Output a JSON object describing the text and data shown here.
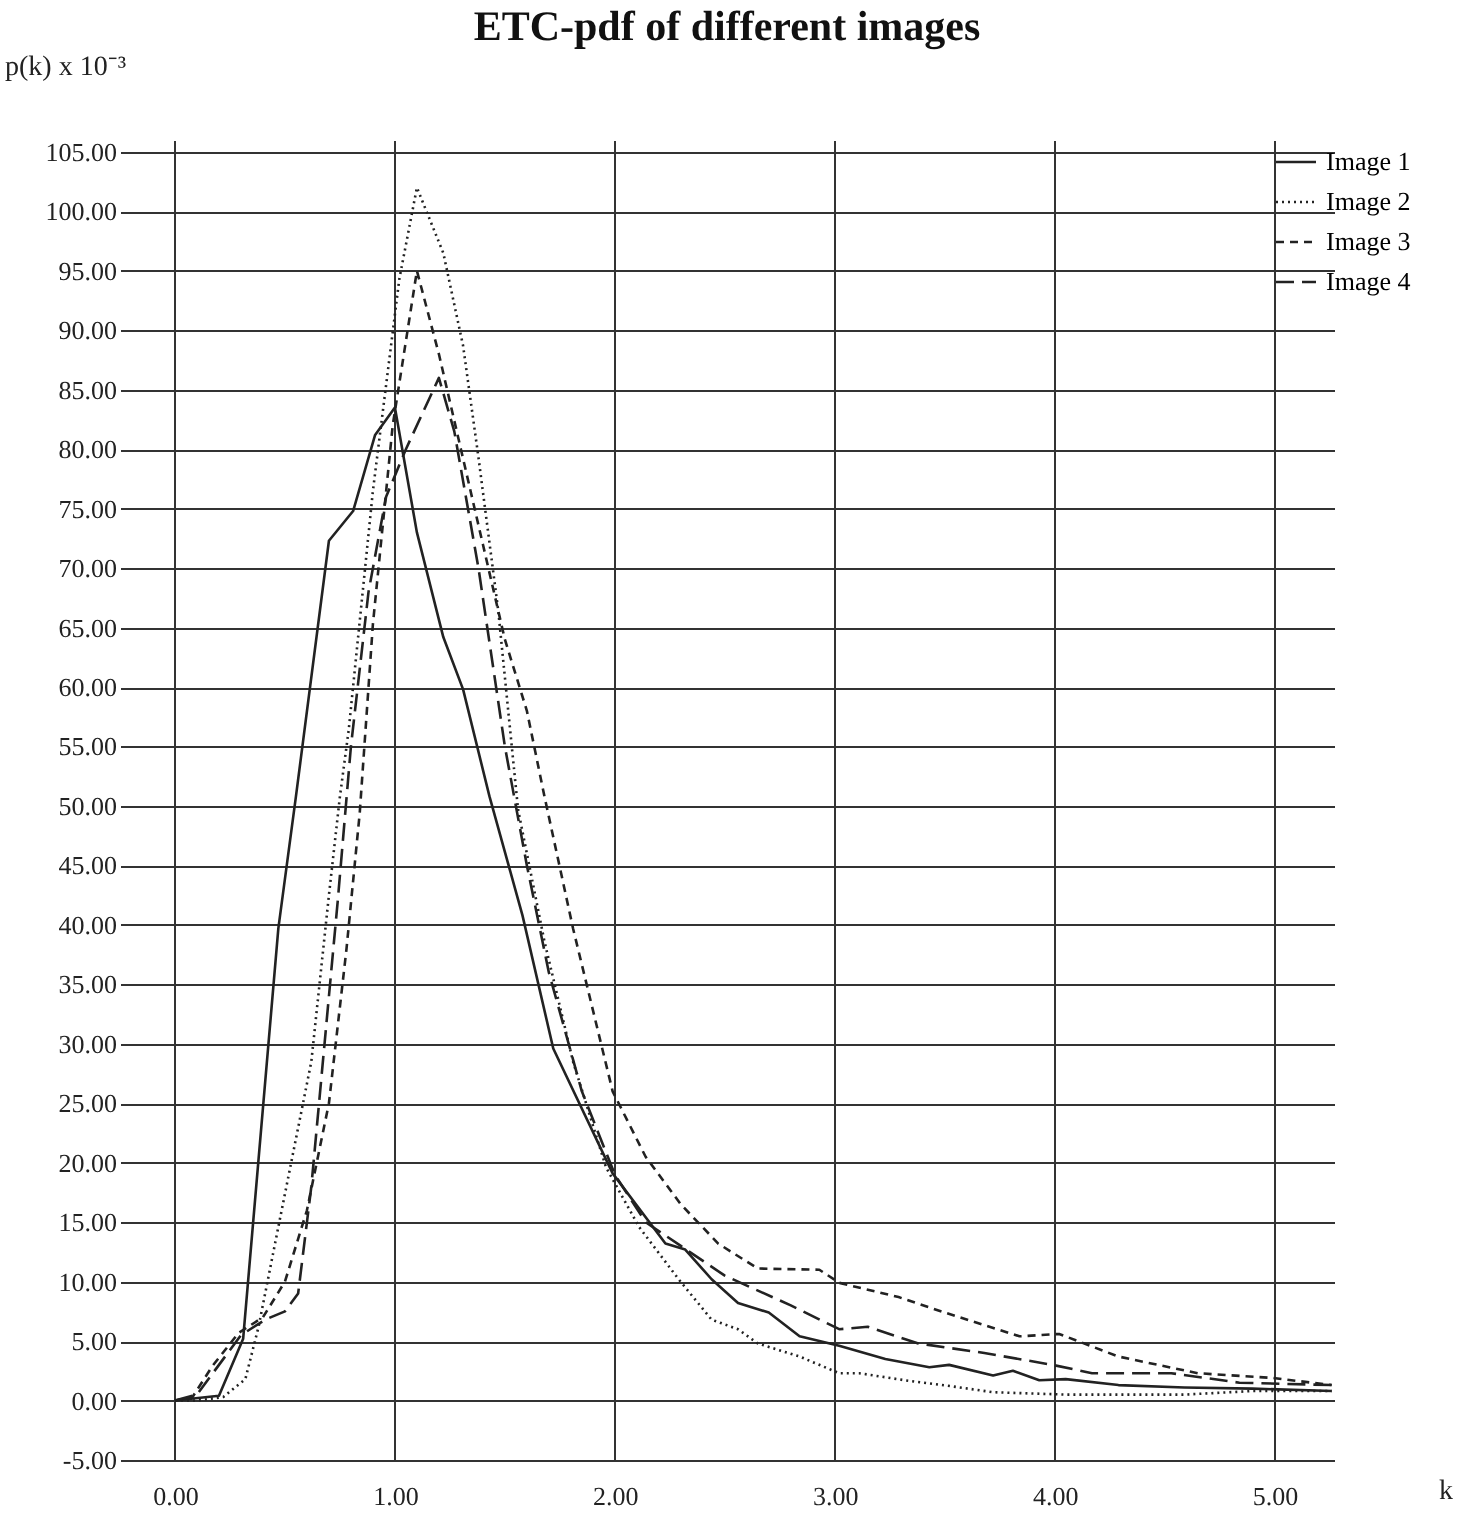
{
  "chart_data": {
    "type": "line",
    "title": "ETC-pdf of different images",
    "xlabel": "k",
    "ylabel": "p(k) x 10⁻³",
    "xlim": [
      -0.25,
      5.27
    ],
    "ylim": [
      -5,
      106
    ],
    "xticks": [
      {
        "value": 0,
        "label": "0.00"
      },
      {
        "value": 1,
        "label": "1.00"
      },
      {
        "value": 2,
        "label": "2.00"
      },
      {
        "value": 3,
        "label": "3.00"
      },
      {
        "value": 4,
        "label": "4.00"
      },
      {
        "value": 5,
        "label": "5.00"
      }
    ],
    "yticks": [
      {
        "value": -5,
        "label": "-5.00"
      },
      {
        "value": 0,
        "label": "0.00"
      },
      {
        "value": 5,
        "label": "5.00"
      },
      {
        "value": 10,
        "label": "10.00"
      },
      {
        "value": 15,
        "label": "15.00"
      },
      {
        "value": 20,
        "label": "20.00"
      },
      {
        "value": 25,
        "label": "25.00"
      },
      {
        "value": 30,
        "label": "30.00"
      },
      {
        "value": 35,
        "label": "35.00"
      },
      {
        "value": 40,
        "label": "40.00"
      },
      {
        "value": 45,
        "label": "45.00"
      },
      {
        "value": 50,
        "label": "50.00"
      },
      {
        "value": 55,
        "label": "55.00"
      },
      {
        "value": 60,
        "label": "60.00"
      },
      {
        "value": 65,
        "label": "65.00"
      },
      {
        "value": 70,
        "label": "70.00"
      },
      {
        "value": 75,
        "label": "75.00"
      },
      {
        "value": 80,
        "label": "80.00"
      },
      {
        "value": 85,
        "label": "85.00"
      },
      {
        "value": 90,
        "label": "90.00"
      },
      {
        "value": 95,
        "label": "95.00"
      },
      {
        "value": 100,
        "label": "100.00"
      },
      {
        "value": 105,
        "label": "105.00"
      }
    ],
    "grid": true,
    "legend": "top right",
    "marker": "none",
    "series": [
      {
        "name": "Image 1",
        "color": "#222222",
        "line_style": "solid",
        "x": [
          0,
          0.2,
          0.31,
          0.47,
          0.55,
          0.7,
          0.81,
          0.91,
          1.0,
          1.1,
          1.22,
          1.31,
          1.43,
          1.58,
          1.72,
          1.99,
          2.23,
          2.32,
          2.44,
          2.56,
          2.7,
          2.84,
          3.02,
          3.23,
          3.43,
          3.52,
          3.72,
          3.81,
          3.93,
          4.05,
          4.29,
          4.59,
          4.9,
          5.26
        ],
        "values": [
          0,
          0.4,
          5.2,
          39.7,
          50.8,
          72.3,
          74.8,
          81.2,
          83.5,
          73,
          64.2,
          59.8,
          50.8,
          40.8,
          29.6,
          19.1,
          13.2,
          12.7,
          10.2,
          8.2,
          7.4,
          5.4,
          4.6,
          3.5,
          2.8,
          3.0,
          2.1,
          2.5,
          1.7,
          1.8,
          1.3,
          1.1,
          1.0,
          0.8
        ]
      },
      {
        "name": "Image 2",
        "color": "#222222",
        "line_style": "dotted",
        "x": [
          0,
          0.1,
          0.22,
          0.32,
          0.38,
          0.47,
          0.62,
          0.7,
          0.75,
          0.79,
          0.9,
          1.02,
          1.1,
          1.22,
          1.31,
          1.38,
          1.47,
          1.56,
          1.68,
          1.81,
          1.96,
          2.11,
          2.29,
          2.44,
          2.56,
          2.65,
          2.84,
          3.02,
          3.11,
          3.32,
          3.53,
          3.72,
          4.05,
          4.59,
          4.9,
          5.26
        ],
        "values": [
          0,
          0,
          0.3,
          1.8,
          6.2,
          14.6,
          28.5,
          42.5,
          50.8,
          56.4,
          76.5,
          94.3,
          102,
          96.5,
          88.7,
          79.3,
          66.4,
          49.7,
          38.6,
          28.5,
          19.6,
          14.6,
          10.2,
          6.8,
          6.0,
          4.8,
          3.7,
          2.3,
          2.3,
          1.7,
          1.2,
          0.7,
          0.5,
          0.5,
          0.8,
          0.8
        ]
      },
      {
        "name": "Image 3",
        "color": "#222222",
        "line_style": "dashed",
        "x": [
          0,
          0.08,
          0.17,
          0.29,
          0.4,
          0.5,
          0.6,
          0.7,
          0.78,
          0.84,
          0.9,
          0.99,
          1.1,
          1.2,
          1.3,
          1.4,
          1.5,
          1.6,
          1.68,
          1.81,
          1.99,
          2.14,
          2.3,
          2.47,
          2.65,
          2.93,
          3.02,
          3.29,
          3.5,
          3.84,
          4.02,
          4.29,
          4.65,
          4.99,
          5.26
        ],
        "values": [
          0,
          0.3,
          2.9,
          5.7,
          7,
          10,
          16,
          25,
          38,
          49.4,
          65.3,
          82,
          95,
          88,
          80,
          72,
          64,
          58,
          50.8,
          39.7,
          26,
          20.5,
          16.5,
          13.2,
          11.1,
          11.0,
          9.9,
          8.7,
          7.4,
          5.4,
          5.6,
          3.7,
          2.3,
          1.9,
          1.3
        ]
      },
      {
        "name": "Image 4",
        "color": "#222222",
        "line_style": "longdash",
        "x": [
          0,
          0.1,
          0.2,
          0.3,
          0.41,
          0.5,
          0.56,
          0.62,
          0.68,
          0.74,
          0.8,
          0.88,
          0.96,
          1.05,
          1.2,
          1.27,
          1.38,
          1.5,
          1.6,
          1.7,
          1.85,
          2.0,
          2.14,
          2.3,
          2.5,
          2.8,
          3.02,
          3.15,
          3.38,
          3.68,
          3.99,
          4.17,
          4.53,
          4.84,
          5.26
        ],
        "values": [
          0,
          0.5,
          3,
          5.5,
          6.8,
          7.5,
          9.0,
          18,
          30,
          42,
          55,
          68,
          76,
          80,
          86,
          81.5,
          70,
          55,
          45,
          36,
          26,
          19,
          15,
          13,
          10.5,
          8,
          6,
          6.2,
          4.8,
          4.0,
          3.0,
          2.3,
          2.3,
          1.5,
          1.3
        ]
      }
    ]
  }
}
